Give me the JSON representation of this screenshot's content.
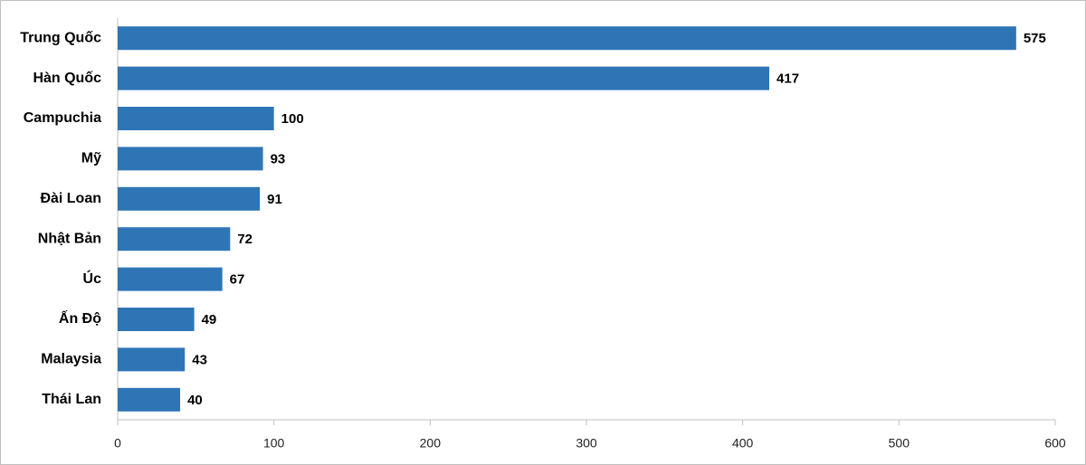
{
  "chart_data": {
    "type": "bar",
    "orientation": "horizontal",
    "categories": [
      "Trung Quốc",
      "Hàn Quốc",
      "Campuchia",
      "Mỹ",
      "Đài Loan",
      "Nhật Bản",
      "Úc",
      "Ấn Độ",
      "Malaysia",
      "Thái Lan"
    ],
    "values": [
      575,
      417,
      100,
      93,
      91,
      72,
      67,
      49,
      43,
      40
    ],
    "color": "#2e75b6",
    "xlim": [
      0,
      600
    ],
    "xticks": [
      0,
      100,
      200,
      300,
      400,
      500,
      600
    ],
    "grid": false,
    "data_labels": true
  }
}
